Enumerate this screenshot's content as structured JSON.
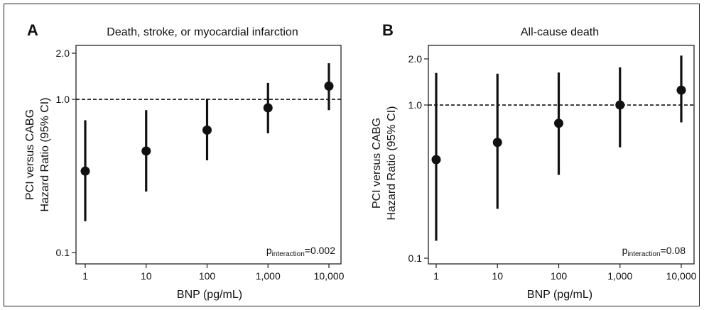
{
  "chart_data": [
    {
      "panel": "A",
      "type": "scatter",
      "title": "Death, stroke, or myocardial infarction",
      "xlabel": "BNP (pg/mL)",
      "ylabel_line1": "PCI versus CABG",
      "ylabel_line2": "Hazard Ratio (95% CI)",
      "x_scale": "log",
      "y_scale": "log",
      "xlim": [
        1,
        10000
      ],
      "ylim": [
        0.1,
        2.0
      ],
      "x_ticks": [
        {
          "value": 1,
          "label": "1"
        },
        {
          "value": 10,
          "label": "10"
        },
        {
          "value": 100,
          "label": "100"
        },
        {
          "value": 1000,
          "label": "1,000"
        },
        {
          "value": 10000,
          "label": "10,000"
        }
      ],
      "y_ticks": [
        {
          "value": 0.1,
          "label": "0.1"
        },
        {
          "value": 1.0,
          "label": "1.0"
        },
        {
          "value": 2.0,
          "label": "2.0"
        }
      ],
      "reference_line": 1.0,
      "points": [
        {
          "x": 1,
          "hr": 0.34,
          "lo": 0.16,
          "hi": 0.73
        },
        {
          "x": 10,
          "hr": 0.46,
          "lo": 0.25,
          "hi": 0.85
        },
        {
          "x": 100,
          "hr": 0.63,
          "lo": 0.4,
          "hi": 1.01
        },
        {
          "x": 1000,
          "hr": 0.88,
          "lo": 0.6,
          "hi": 1.28
        },
        {
          "x": 10000,
          "hr": 1.22,
          "lo": 0.85,
          "hi": 1.72
        }
      ],
      "annotation": {
        "p": "p",
        "sub": "interaction",
        "value": "=0.002"
      }
    },
    {
      "panel": "B",
      "type": "scatter",
      "title": "All-cause death",
      "xlabel": "BNP (pg/mL)",
      "ylabel_line1": "PCI versus CABG",
      "ylabel_line2": "Hazard Ratio (95% CI)",
      "x_scale": "log",
      "y_scale": "log",
      "xlim": [
        1,
        10000
      ],
      "ylim": [
        0.1,
        2.0
      ],
      "x_ticks": [
        {
          "value": 1,
          "label": "1"
        },
        {
          "value": 10,
          "label": "10"
        },
        {
          "value": 100,
          "label": "100"
        },
        {
          "value": 1000,
          "label": "1,000"
        },
        {
          "value": 10000,
          "label": "10,000"
        }
      ],
      "y_ticks": [
        {
          "value": 0.1,
          "label": "0.1"
        },
        {
          "value": 1.0,
          "label": "1.0"
        },
        {
          "value": 2.0,
          "label": "2.0"
        }
      ],
      "reference_line": 1.0,
      "points": [
        {
          "x": 1,
          "hr": 0.44,
          "lo": 0.13,
          "hi": 1.62
        },
        {
          "x": 10,
          "hr": 0.57,
          "lo": 0.21,
          "hi": 1.6
        },
        {
          "x": 100,
          "hr": 0.76,
          "lo": 0.35,
          "hi": 1.63
        },
        {
          "x": 1000,
          "hr": 1.0,
          "lo": 0.53,
          "hi": 1.76
        },
        {
          "x": 10000,
          "hr": 1.25,
          "lo": 0.77,
          "hi": 2.1
        }
      ],
      "annotation": {
        "p": "p",
        "sub": "interaction",
        "value": "=0.08"
      }
    }
  ]
}
